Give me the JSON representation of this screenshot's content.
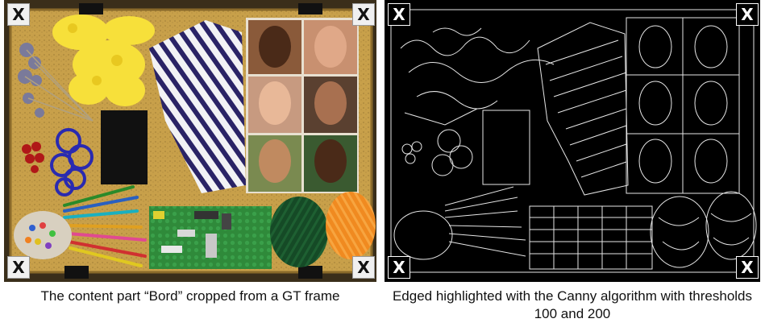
{
  "left_panel": {
    "caption": "The content part “Bord” cropped from a GT frame",
    "corner_marker": "X"
  },
  "right_panel": {
    "caption": "Edged highlighted with the Canny algorithm with thresholds 100 and 200",
    "corner_marker": "X"
  },
  "colors": {
    "board": "#c9a24a",
    "edge_background": "#000000",
    "edge_lines": "#ffffff"
  }
}
